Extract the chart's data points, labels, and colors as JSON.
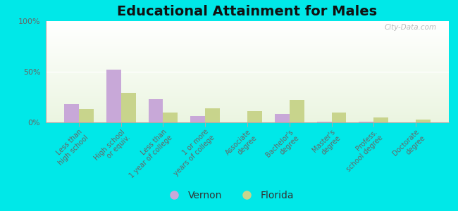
{
  "title": "Educational Attainment for Males",
  "categories": [
    "Less than\nhigh school",
    "High school\nor equiv.",
    "Less than\n1 year of college",
    "1 or more\nyears of college",
    "Associate\ndegree",
    "Bachelor's\ndegree",
    "Master's\ndegree",
    "Profess.\nschool degree",
    "Doctorate\ndegree"
  ],
  "vernon_values": [
    18,
    52,
    23,
    6,
    0,
    8,
    1,
    1,
    0
  ],
  "florida_values": [
    13,
    29,
    10,
    14,
    11,
    22,
    10,
    5,
    3
  ],
  "vernon_color": "#c8a8d8",
  "florida_color": "#c8d48c",
  "ylim": [
    0,
    100
  ],
  "yticks": [
    0,
    50,
    100
  ],
  "ytick_labels": [
    "0%",
    "50%",
    "100%"
  ],
  "bar_width": 0.35,
  "legend_labels": [
    "Vernon",
    "Florida"
  ],
  "title_fontsize": 14,
  "tick_fontsize": 7,
  "legend_fontsize": 10,
  "bg_color": "#00e8e8",
  "watermark": "City-Data.com"
}
